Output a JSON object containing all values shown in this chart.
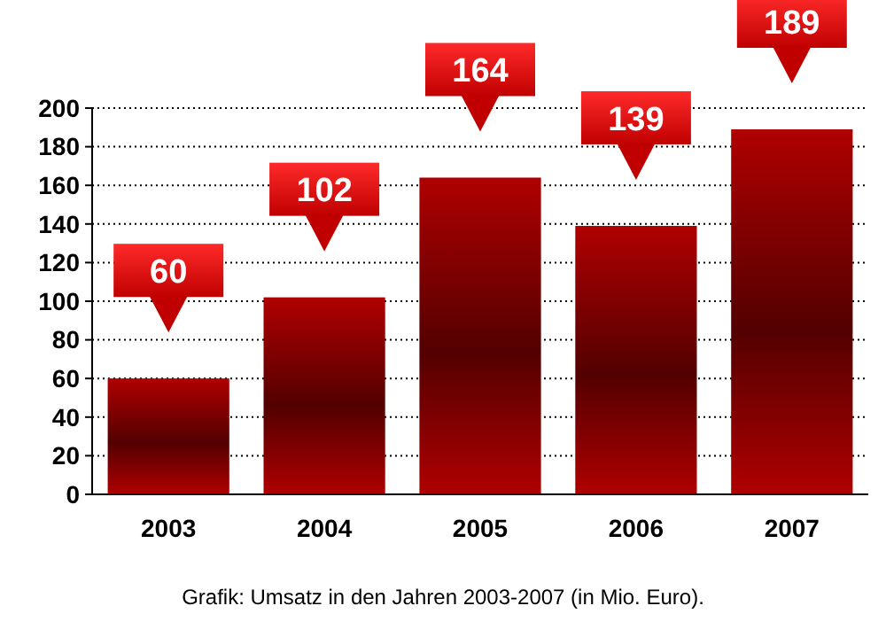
{
  "chart_data": {
    "type": "bar",
    "categories": [
      "2003",
      "2004",
      "2005",
      "2006",
      "2007"
    ],
    "values": [
      60,
      102,
      164,
      139,
      189
    ],
    "color": "#800000",
    "ylim": [
      0,
      200
    ],
    "yticks": [
      0,
      20,
      40,
      60,
      80,
      100,
      120,
      140,
      160,
      180,
      200
    ],
    "grid": "y",
    "data_labels": true,
    "annotations": [
      "Grafik: Umsatz in den Jahren 2003-2007 (in Mio. Euro)."
    ]
  }
}
